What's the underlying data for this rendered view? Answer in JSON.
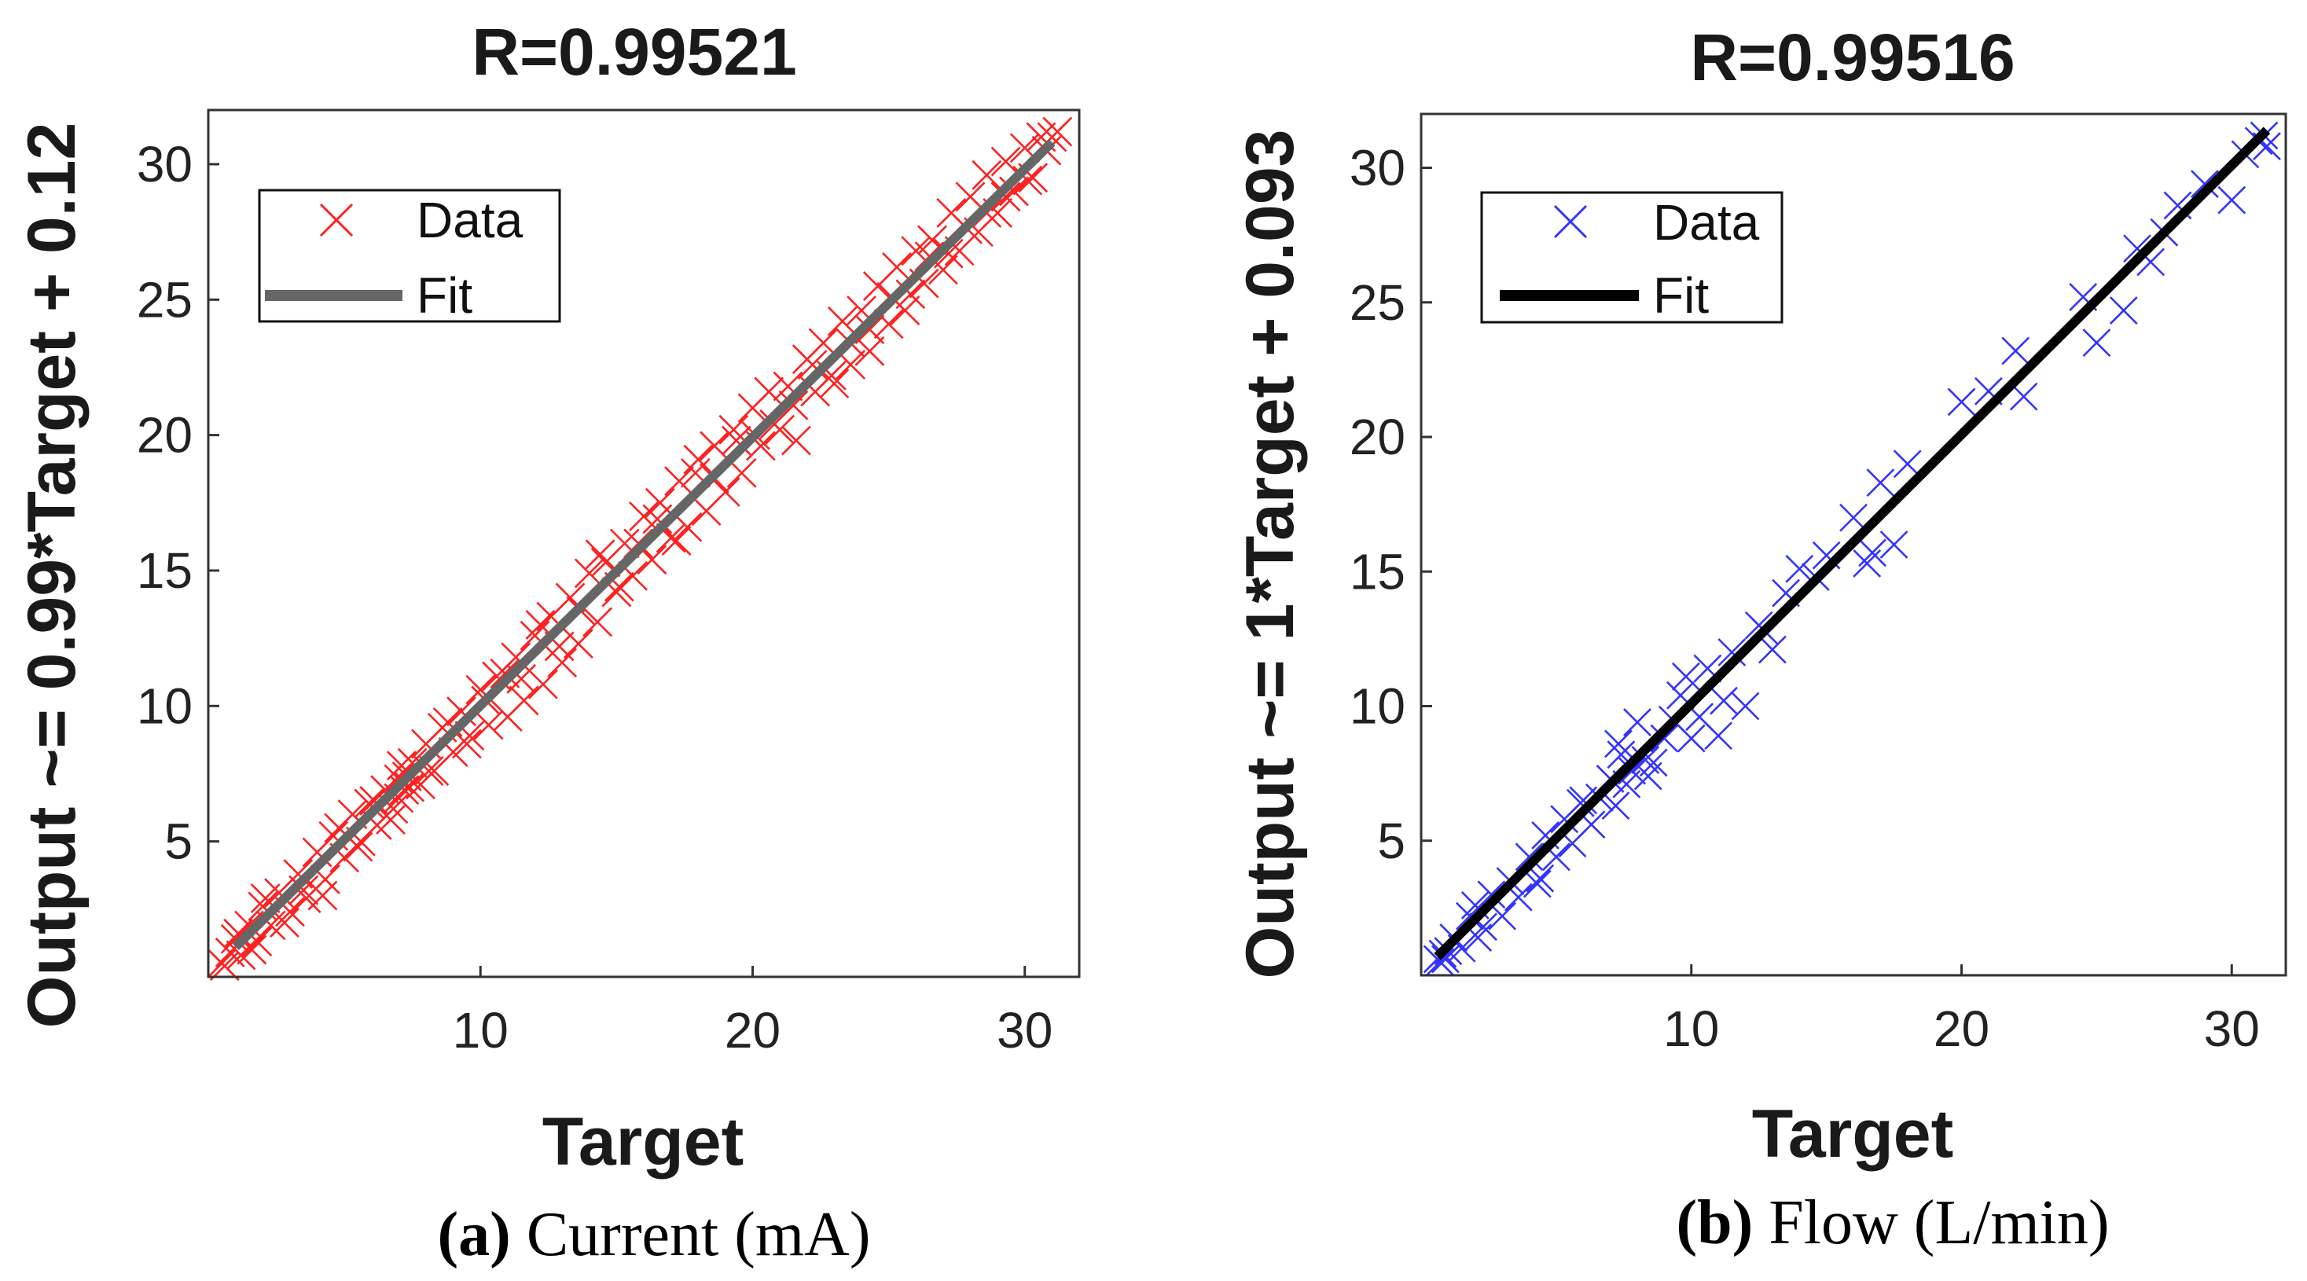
{
  "chart_data": [
    {
      "type": "scatter",
      "title": "R=0.99521",
      "xlabel": "Target",
      "ylabel": "Output ~= 0.99*Target + 0.12",
      "caption_label": "(a)",
      "caption_text": "Current (mA)",
      "xlim": [
        0,
        32
      ],
      "ylim": [
        0,
        32
      ],
      "xticks": [
        10,
        20,
        30
      ],
      "xtick_labels": [
        "10",
        "20",
        "30"
      ],
      "yticks": [
        5,
        10,
        15,
        20,
        25,
        30
      ],
      "ytick_labels": [
        "5",
        "10",
        "15",
        "20",
        "25",
        "30"
      ],
      "grid": false,
      "legend": {
        "position": "top-left",
        "entries": [
          "Data",
          "Fit"
        ]
      },
      "colors": {
        "data": "#ff2020",
        "fit": "#666666"
      },
      "fit": {
        "slope": 0.99,
        "intercept": 0.12,
        "x_range": [
          1,
          31
        ]
      },
      "series": [
        {
          "name": "Data",
          "marker": "x",
          "x": [
            0.5,
            0.8,
            1.0,
            1.2,
            1.5,
            1.8,
            2.0,
            2.3,
            2.6,
            3.0,
            3.3,
            3.6,
            4.0,
            4.3,
            4.6,
            5.0,
            5.3,
            5.6,
            5.9,
            6.2,
            6.5,
            6.8,
            7.0,
            7.0,
            7.1,
            7.2,
            7.3,
            7.5,
            7.8,
            8.0,
            8.3,
            8.6,
            9.0,
            9.3,
            9.6,
            10.0,
            10.3,
            10.6,
            11.0,
            11.3,
            11.6,
            12.0,
            12.3,
            12.6,
            13.0,
            13.3,
            13.6,
            14.0,
            14.3,
            14.6,
            15.0,
            15.3,
            15.6,
            16.0,
            16.3,
            16.6,
            17.0,
            17.3,
            17.6,
            18.0,
            18.3,
            18.6,
            19.0,
            19.3,
            19.6,
            20.0,
            20.3,
            20.6,
            21.0,
            21.3,
            21.6,
            22.0,
            22.3,
            22.6,
            23.0,
            23.3,
            23.6,
            24.0,
            24.3,
            24.6,
            25.0,
            25.3,
            25.6,
            26.0,
            26.3,
            26.6,
            27.0,
            27.3,
            27.6,
            28.0,
            28.3,
            28.6,
            29.0,
            29.3,
            29.6,
            30.0,
            30.3,
            30.6,
            31.0,
            31.2,
            0.6,
            1.1,
            1.6,
            2.1,
            2.8,
            3.5,
            4.2,
            4.8,
            5.5,
            6.1,
            6.7,
            7.4,
            8.1,
            8.8,
            9.5,
            10.2,
            10.9,
            11.5,
            12.2,
            12.9,
            13.7,
            14.4,
            15.1,
            15.8,
            16.5,
            17.2,
            17.9,
            18.6,
            19.4,
            20.1,
            20.8,
            21.5,
            22.2,
            22.9,
            23.6,
            24.3,
            25.1,
            25.8,
            26.5,
            27.2,
            27.9,
            28.6,
            29.3,
            30.1,
            30.8
          ],
          "y": [
            0.5,
            0.9,
            1.4,
            0.8,
            1.9,
            1.3,
            2.6,
            1.9,
            3.1,
            2.4,
            3.8,
            2.9,
            4.6,
            3.6,
            5.2,
            4.4,
            6.0,
            5.0,
            6.4,
            5.6,
            6.9,
            6.2,
            7.3,
            6.6,
            7.8,
            6.9,
            7.4,
            7.9,
            7.1,
            8.6,
            7.6,
            9.2,
            8.3,
            9.8,
            8.9,
            10.6,
            9.3,
            11.1,
            9.6,
            11.8,
            10.2,
            12.6,
            10.8,
            13.3,
            11.6,
            14.0,
            12.3,
            14.9,
            13.1,
            15.3,
            14.2,
            16.0,
            14.8,
            17.0,
            15.4,
            17.5,
            16.2,
            18.3,
            16.6,
            19.1,
            17.2,
            19.6,
            17.9,
            20.2,
            18.6,
            21.0,
            19.6,
            21.6,
            20.2,
            21.8,
            19.8,
            22.8,
            21.6,
            23.4,
            21.9,
            24.2,
            22.6,
            24.6,
            23.1,
            25.5,
            24.1,
            26.2,
            24.6,
            26.8,
            25.6,
            27.2,
            26.1,
            28.2,
            26.8,
            28.8,
            27.5,
            29.6,
            28.2,
            30.1,
            29.0,
            30.6,
            29.5,
            31.0,
            31.0,
            31.2,
            0.4,
            1.6,
            1.0,
            2.9,
            2.0,
            3.2,
            3.0,
            5.5,
            4.8,
            6.5,
            5.8,
            7.0,
            7.6,
            9.4,
            8.6,
            10.2,
            11.2,
            11.0,
            13.0,
            12.2,
            13.5,
            15.6,
            14.4,
            16.0,
            16.9,
            16.1,
            18.6,
            18.4,
            19.8,
            20.0,
            20.4,
            21.1,
            22.6,
            22.2,
            23.4,
            23.9,
            25.1,
            25.2,
            26.6,
            26.7,
            27.6,
            28.2,
            28.8,
            29.4,
            30.5
          ]
        }
      ]
    },
    {
      "type": "scatter",
      "title": "R=0.99516",
      "xlabel": "Target",
      "ylabel": "Output ~= 1*Target + 0.093",
      "caption_label": "(b)",
      "caption_text": "Flow (L/min)",
      "xlim": [
        0,
        32
      ],
      "ylim": [
        0,
        32
      ],
      "xticks": [
        10,
        20,
        30
      ],
      "xtick_labels": [
        "10",
        "20",
        "30"
      ],
      "yticks": [
        5,
        10,
        15,
        20,
        25,
        30
      ],
      "ytick_labels": [
        "5",
        "10",
        "15",
        "20",
        "25",
        "30"
      ],
      "grid": false,
      "legend": {
        "position": "top-left",
        "entries": [
          "Data",
          "Fit"
        ]
      },
      "colors": {
        "data": "#3333ff",
        "fit": "#000000"
      },
      "fit": {
        "slope": 1.0,
        "intercept": 0.093,
        "x_range": [
          0.6,
          31.3
        ]
      },
      "series": [
        {
          "name": "Data",
          "marker": "x",
          "x": [
            0.6,
            0.7,
            0.8,
            0.9,
            1.0,
            1.2,
            1.5,
            1.8,
            2.0,
            2.3,
            2.6,
            3.0,
            3.3,
            3.6,
            4.0,
            4.3,
            4.6,
            5.0,
            5.3,
            5.6,
            6.0,
            6.3,
            6.6,
            7.0,
            7.2,
            7.4,
            7.6,
            7.8,
            8.0,
            8.3,
            8.6,
            9.0,
            9.3,
            9.6,
            10.0,
            10.3,
            10.6,
            11.0,
            11.5,
            12.0,
            12.5,
            13.0,
            13.5,
            14.0,
            15.0,
            16.0,
            16.5,
            17.0,
            17.5,
            18.0,
            20.0,
            21.0,
            22.0,
            22.3,
            24.5,
            25.0,
            26.0,
            26.5,
            27.0,
            27.5,
            28.0,
            29.0,
            30.0,
            30.5,
            31.0,
            31.2,
            31.3,
            2.1,
            4.4,
            5.9,
            7.3,
            8.4,
            9.8,
            11.2,
            12.7,
            14.6,
            16.7
          ],
          "y": [
            0.6,
            0.5,
            0.8,
            0.6,
            0.9,
            1.4,
            1.0,
            2.2,
            2.6,
            1.8,
            3.0,
            2.2,
            3.5,
            2.9,
            4.4,
            3.4,
            5.2,
            4.4,
            5.8,
            4.9,
            6.5,
            5.6,
            6.6,
            7.3,
            6.3,
            8.2,
            7.1,
            7.6,
            9.4,
            8.0,
            7.9,
            8.8,
            9.5,
            10.4,
            8.8,
            9.6,
            11.4,
            8.9,
            12.0,
            10.0,
            13.0,
            12.1,
            14.2,
            15.1,
            15.6,
            17.0,
            15.3,
            18.3,
            16.0,
            19.0,
            21.3,
            21.7,
            23.2,
            21.5,
            25.2,
            23.5,
            24.7,
            27.0,
            26.5,
            27.6,
            28.6,
            29.4,
            28.8,
            30.5,
            31.0,
            31.2,
            30.8,
            1.4,
            3.6,
            6.4,
            8.6,
            7.4,
            11.1,
            10.2,
            12.8,
            14.8,
            15.7
          ]
        }
      ]
    }
  ]
}
